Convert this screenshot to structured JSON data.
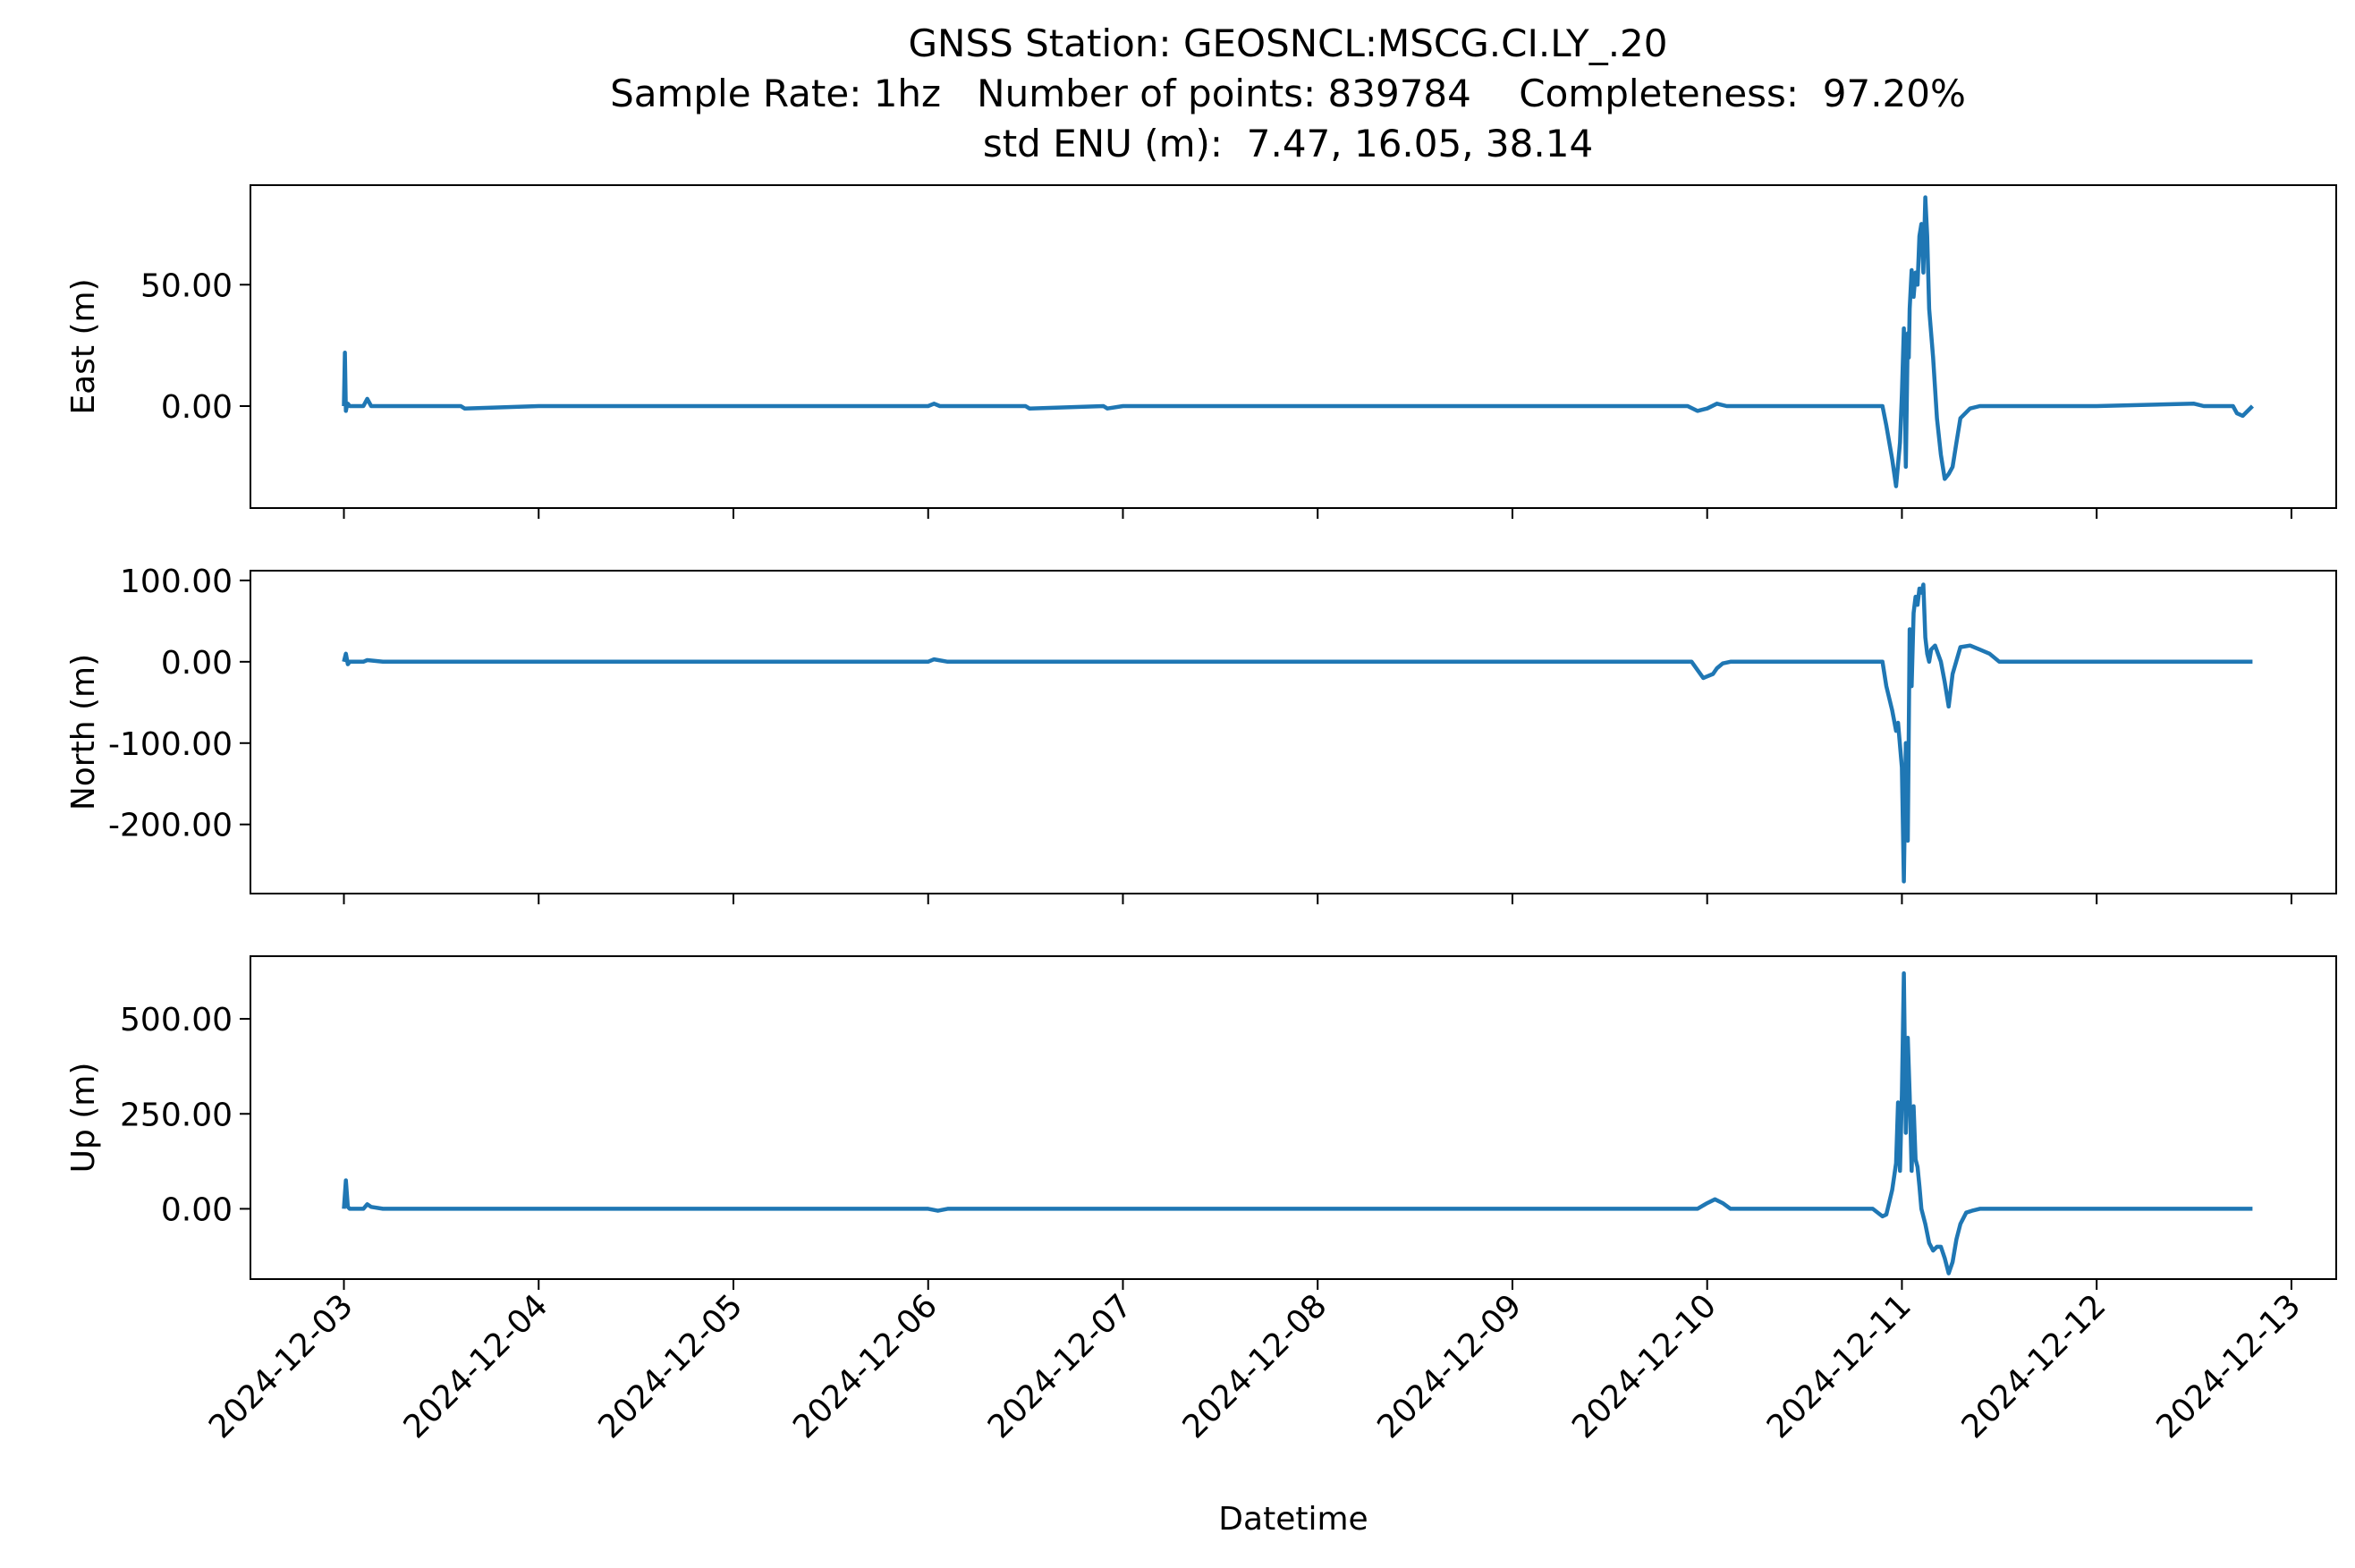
{
  "title_lines": [
    "GNSS Station: GEOSNCL:MSCG.CI.LY_.20",
    "Sample Rate: 1hz   Number of points: 839784    Completeness:  97.20%",
    "std ENU (m):  7.47, 16.05, 38.14"
  ],
  "chart_data": [
    {
      "type": "line",
      "ylabel": "East (m)",
      "xlabel": "",
      "xlim": [
        -0.48,
        10.23
      ],
      "ylim": [
        -42,
        91
      ],
      "yticks": [
        0,
        50
      ],
      "ytick_labels": [
        "0.00",
        "50.00"
      ],
      "xticks": [
        0,
        1,
        2,
        3,
        4,
        5,
        6,
        7,
        8,
        9,
        10
      ],
      "xtick_labels": [
        "2024-12-03",
        "2024-12-04",
        "2024-12-05",
        "2024-12-06",
        "2024-12-07",
        "2024-12-08",
        "2024-12-09",
        "2024-12-10",
        "2024-12-11",
        "2024-12-12",
        "2024-12-13"
      ],
      "series": [
        {
          "color": "#1f77b4",
          "x": [
            0,
            0.005,
            0.01,
            0.015,
            0.02,
            0.03,
            0.1,
            0.12,
            0.14,
            0.16,
            0.2,
            0.6,
            0.62,
            1,
            2.0,
            2.9,
            3.0,
            3.03,
            3.06,
            3.1,
            3.5,
            3.52,
            3.9,
            3.92,
            4.0,
            5,
            6,
            6.9,
            6.95,
            7.0,
            7.05,
            7.1,
            7.5,
            7.9,
            7.92,
            7.95,
            7.97,
            7.99,
            8.0,
            8.01,
            8.02,
            8.03,
            8.035,
            8.04,
            8.05,
            8.06,
            8.07,
            8.08,
            8.09,
            8.1,
            8.11,
            8.12,
            8.13,
            8.14,
            8.15,
            8.16,
            8.18,
            8.2,
            8.22,
            8.24,
            8.26,
            8.28,
            8.3,
            8.35,
            8.4,
            8.5,
            9,
            9.5,
            9.55,
            9.6,
            9.7,
            9.72,
            9.75,
            9.8
          ],
          "y": [
            0,
            22,
            -2,
            0,
            1,
            0,
            0,
            3,
            0,
            0,
            0,
            0,
            -1,
            0,
            0,
            0,
            0,
            1,
            0,
            0,
            0,
            -1,
            0,
            -1,
            0,
            0,
            0,
            0,
            -2,
            -1,
            1,
            0,
            0,
            0,
            -8,
            -22,
            -33,
            -15,
            5,
            32,
            -25,
            30,
            20,
            40,
            56,
            45,
            55,
            50,
            70,
            75,
            55,
            86,
            70,
            40,
            30,
            20,
            -5,
            -20,
            -30,
            -28,
            -25,
            -15,
            -5,
            -1,
            0,
            0,
            0,
            1,
            0,
            0,
            0,
            -3,
            -4,
            0
          ]
        }
      ]
    },
    {
      "type": "line",
      "ylabel": "North (m)",
      "xlabel": "",
      "xlim": [
        -0.48,
        10.23
      ],
      "ylim": [
        -285,
        112
      ],
      "yticks": [
        -200,
        -100,
        0,
        100
      ],
      "ytick_labels": [
        "-200.00",
        "-100.00",
        "0.00",
        "100.00"
      ],
      "xticks": [
        0,
        1,
        2,
        3,
        4,
        5,
        6,
        7,
        8,
        9,
        10
      ],
      "xtick_labels": [
        "2024-12-03",
        "2024-12-04",
        "2024-12-05",
        "2024-12-06",
        "2024-12-07",
        "2024-12-08",
        "2024-12-09",
        "2024-12-10",
        "2024-12-11",
        "2024-12-12",
        "2024-12-13"
      ],
      "series": [
        {
          "color": "#1f77b4",
          "x": [
            0,
            0.01,
            0.02,
            0.03,
            0.1,
            0.12,
            0.2,
            1,
            2,
            3.0,
            3.03,
            3.1,
            4,
            5,
            6,
            6.92,
            6.95,
            6.98,
            7.0,
            7.03,
            7.05,
            7.08,
            7.12,
            7.2,
            7.5,
            7.9,
            7.92,
            7.95,
            7.97,
            7.98,
            8.0,
            8.01,
            8.02,
            8.03,
            8.04,
            8.05,
            8.06,
            8.07,
            8.08,
            8.09,
            8.1,
            8.11,
            8.12,
            8.13,
            8.14,
            8.15,
            8.17,
            8.2,
            8.22,
            8.24,
            8.26,
            8.3,
            8.35,
            8.4,
            8.45,
            8.5,
            8.55,
            9,
            9.5,
            9.7,
            9.8
          ],
          "y": [
            0,
            10,
            -3,
            0,
            0,
            2,
            0,
            0,
            0,
            0,
            3,
            0,
            0,
            0,
            0,
            0,
            -10,
            -20,
            -18,
            -15,
            -8,
            -2,
            0,
            0,
            0,
            0,
            -30,
            -60,
            -85,
            -75,
            -130,
            -270,
            -100,
            -220,
            40,
            -30,
            60,
            80,
            70,
            90,
            85,
            95,
            30,
            10,
            0,
            15,
            20,
            0,
            -25,
            -55,
            -15,
            18,
            20,
            15,
            10,
            0,
            0,
            0,
            0,
            0,
            0
          ]
        }
      ]
    },
    {
      "type": "line",
      "ylabel": "Up (m)",
      "xlabel": "Datetime",
      "xlim": [
        -0.48,
        10.23
      ],
      "ylim": [
        -185,
        665
      ],
      "yticks": [
        0,
        250,
        500
      ],
      "ytick_labels": [
        "0.00",
        "250.00",
        "500.00"
      ],
      "xticks": [
        0,
        1,
        2,
        3,
        4,
        5,
        6,
        7,
        8,
        9,
        10
      ],
      "xtick_labels": [
        "2024-12-03",
        "2024-12-04",
        "2024-12-05",
        "2024-12-06",
        "2024-12-07",
        "2024-12-08",
        "2024-12-09",
        "2024-12-10",
        "2024-12-11",
        "2024-12-12",
        "2024-12-13"
      ],
      "series": [
        {
          "color": "#1f77b4",
          "x": [
            0,
            0.01,
            0.02,
            0.03,
            0.1,
            0.12,
            0.14,
            0.2,
            1,
            2,
            3.0,
            3.05,
            3.1,
            4,
            5,
            6,
            6.95,
            7.0,
            7.04,
            7.08,
            7.12,
            7.2,
            7.5,
            7.85,
            7.9,
            7.92,
            7.95,
            7.97,
            7.98,
            7.99,
            8.0,
            8.01,
            8.02,
            8.03,
            8.04,
            8.05,
            8.06,
            8.07,
            8.08,
            8.09,
            8.1,
            8.12,
            8.14,
            8.16,
            8.18,
            8.2,
            8.22,
            8.24,
            8.26,
            8.28,
            8.3,
            8.33,
            8.36,
            8.4,
            8.45,
            8.5,
            9,
            9.5,
            9.7,
            9.8
          ],
          "y": [
            0,
            75,
            5,
            0,
            0,
            12,
            5,
            0,
            0,
            0,
            0,
            -5,
            0,
            0,
            0,
            0,
            0,
            15,
            25,
            15,
            0,
            0,
            0,
            0,
            -20,
            -15,
            50,
            120,
            280,
            100,
            300,
            620,
            200,
            450,
            300,
            100,
            270,
            130,
            110,
            60,
            0,
            -40,
            -90,
            -110,
            -100,
            -100,
            -130,
            -170,
            -140,
            -80,
            -40,
            -10,
            -5,
            0,
            0,
            0,
            0,
            0,
            0,
            0
          ]
        }
      ]
    }
  ]
}
